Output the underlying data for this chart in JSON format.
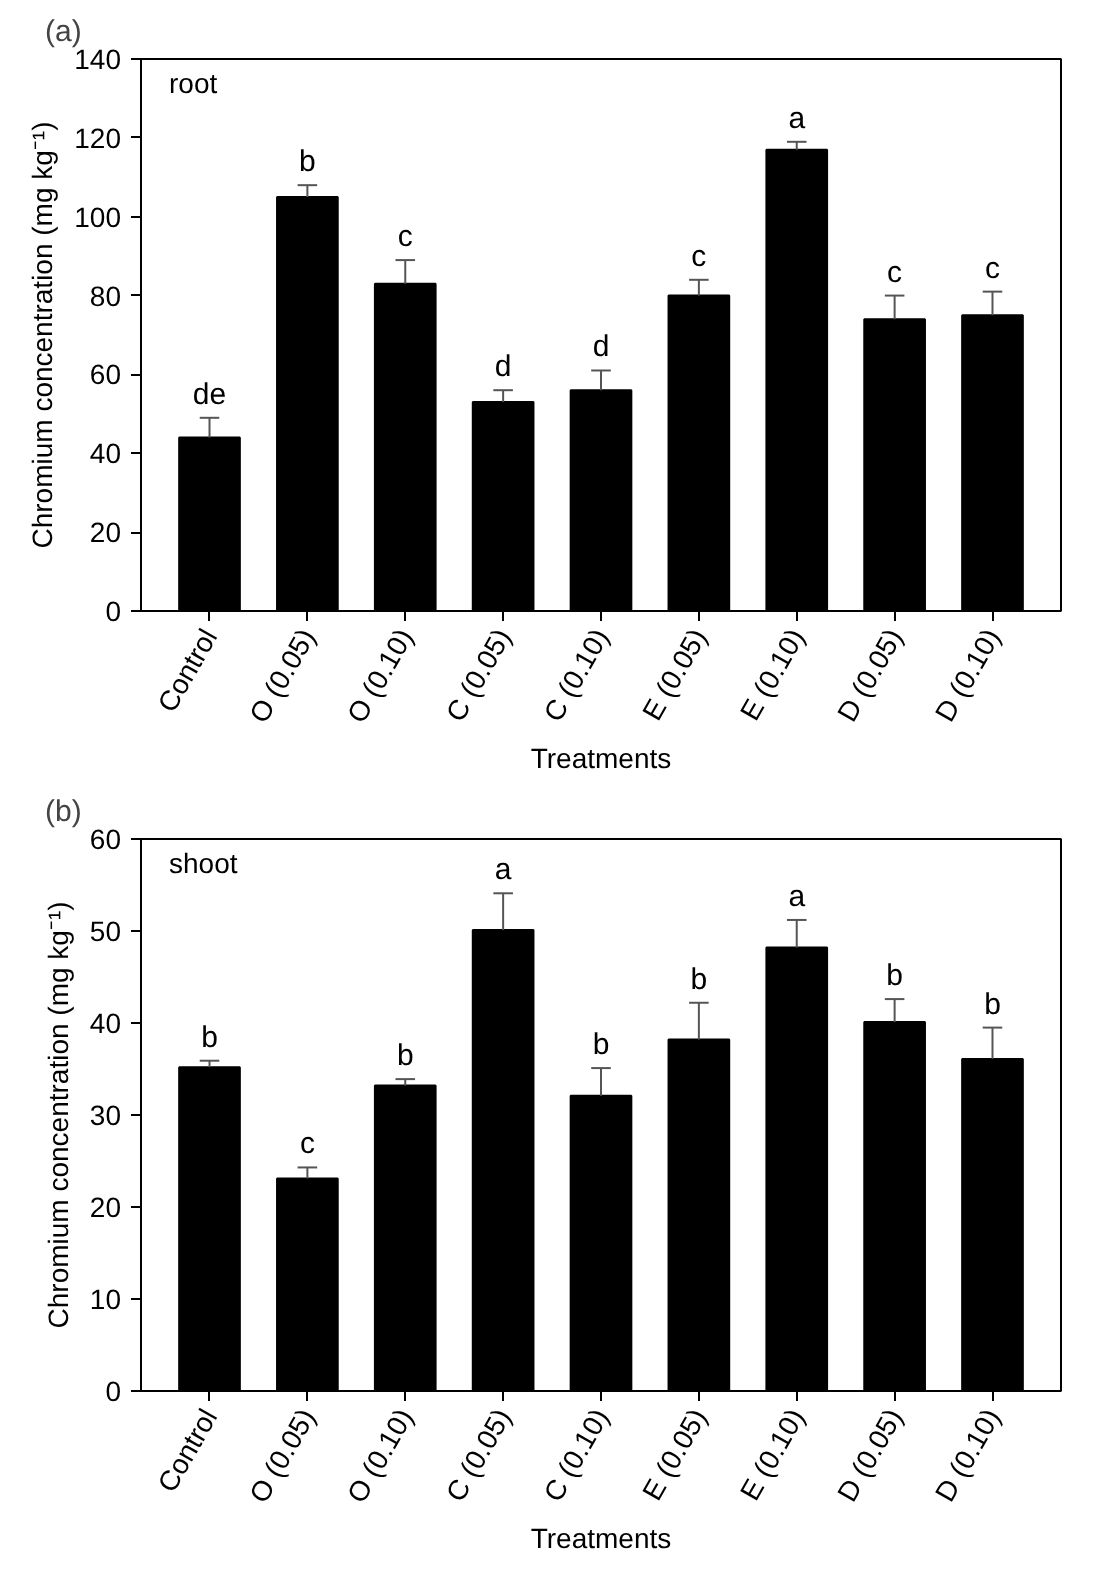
{
  "chart_data": [
    {
      "type": "bar",
      "title": "(a)",
      "subtitle": "root",
      "xlabel": "Treatments",
      "ylabel": "Chromium concentration (mg kg⁻¹)",
      "categories": [
        "Control",
        "O (0.05)",
        "O (0.10)",
        "C (0.05)",
        "C (0.10)",
        "E (0.05)",
        "E (0.10)",
        "D (0.05)",
        "D (0.10)"
      ],
      "values": [
        44,
        105,
        83,
        53,
        56,
        80,
        117,
        74,
        75
      ],
      "errors": [
        5,
        3,
        6,
        3,
        5,
        4,
        2,
        6,
        6
      ],
      "color": "#000000",
      "ylim": [
        0,
        140
      ],
      "yticks": [
        0,
        20,
        40,
        60,
        80,
        100,
        120,
        140
      ],
      "grid": false,
      "annotations": [
        {
          "text": "de",
          "x": "Control",
          "y": 49
        },
        {
          "text": "b",
          "x": "O (0.05)",
          "y": 108
        },
        {
          "text": "c",
          "x": "O (0.10)",
          "y": 89
        },
        {
          "text": "d",
          "x": "C (0.05)",
          "y": 56
        },
        {
          "text": "d",
          "x": "C (0.10)",
          "y": 61
        },
        {
          "text": "c",
          "x": "E (0.05)",
          "y": 84
        },
        {
          "text": "a",
          "x": "E (0.10)",
          "y": 119
        },
        {
          "text": "c",
          "x": "D (0.05)",
          "y": 80
        },
        {
          "text": "c",
          "x": "D (0.10)",
          "y": 81
        }
      ]
    },
    {
      "type": "bar",
      "title": "(b)",
      "subtitle": "shoot",
      "xlabel": "Treatments",
      "ylabel": "Chromium concentration (mg kg⁻¹)",
      "categories": [
        "Control",
        "O (0.05)",
        "O (0.10)",
        "C (0.05)",
        "C (0.10)",
        "E (0.05)",
        "E (0.10)",
        "D (0.05)",
        "D (0.10)"
      ],
      "values": [
        35.2,
        23.1,
        33.2,
        50.1,
        32.1,
        38.2,
        48.2,
        40.1,
        36.1
      ],
      "errors": [
        0.7,
        1.2,
        0.7,
        4,
        3,
        4,
        3,
        2.5,
        3.4
      ],
      "color": "#000000",
      "ylim": [
        0,
        60
      ],
      "yticks": [
        0,
        10,
        20,
        30,
        40,
        50,
        60
      ],
      "grid": false,
      "annotations": [
        {
          "text": "b",
          "x": "Control",
          "y": 35.9
        },
        {
          "text": "c",
          "x": "O (0.05)",
          "y": 24.3
        },
        {
          "text": "b",
          "x": "O (0.10)",
          "y": 33.9
        },
        {
          "text": "a",
          "x": "C (0.05)",
          "y": 54.1
        },
        {
          "text": "b",
          "x": "C (0.10)",
          "y": 35.1
        },
        {
          "text": "b",
          "x": "E (0.05)",
          "y": 42.2
        },
        {
          "text": "a",
          "x": "E (0.10)",
          "y": 51.2
        },
        {
          "text": "b",
          "x": "D (0.05)",
          "y": 42.6
        },
        {
          "text": "b",
          "x": "D (0.10)",
          "y": 39.5
        }
      ]
    }
  ]
}
